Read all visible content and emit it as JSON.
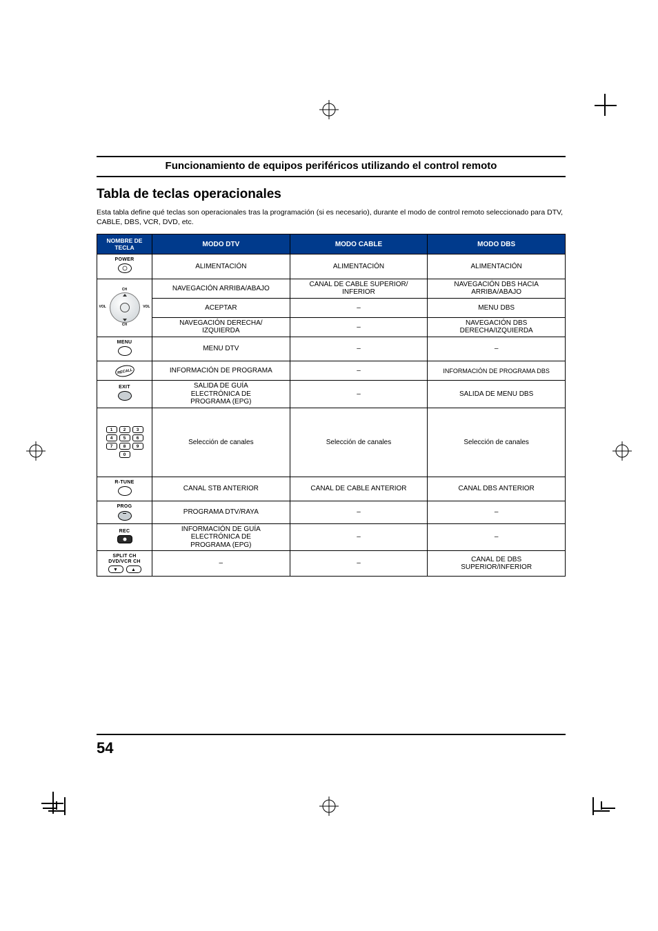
{
  "doc_title": "Funcionamiento de equipos periféricos utilizando el control remoto",
  "section_title": "Tabla de teclas operacionales",
  "intro": "Esta tabla define qué teclas son operacionales tras la programación (si es necesario), durante el modo de control remoto seleccionado para DTV, CABLE, DBS, VCR, DVD, etc.",
  "page_number": "54",
  "header": {
    "c0": "NOMBRE DE TECLA",
    "c1": "MODO DTV",
    "c2": "MODO CABLE",
    "c3": "MODO DBS"
  },
  "rows": {
    "power": {
      "key": "POWER",
      "dtv": "ALIMENTACIÓN",
      "cable": "ALIMENTACIÓN",
      "dbs": "ALIMENTACIÓN"
    },
    "nav_ud": {
      "dtv": "NAVEGACIÓN ARRIBA/ABAJO",
      "cable": "CANAL DE CABLE SUPERIOR/\nINFERIOR",
      "dbs": "NAVEGACIÓN DBS HACIA\nARRIBA/ABAJO"
    },
    "nav_ok": {
      "dtv": "ACEPTAR",
      "cable": "–",
      "dbs": "MENU DBS"
    },
    "nav_lr": {
      "dtv": "NAVEGACIÓN DERECHA/\nIZQUIERDA",
      "cable": "–",
      "dbs": "NAVEGACIÓN DBS\nDERECHA/IZQUIERDA"
    },
    "menu": {
      "key": "MENU",
      "dtv": "MENU DTV",
      "cable": "–",
      "dbs": "–"
    },
    "recall": {
      "dtv": "INFORMACIÓN DE PROGRAMA",
      "cable": "–",
      "dbs": "INFORMACIÓN DE PROGRAMA DBS"
    },
    "exit": {
      "key": "EXIT",
      "dtv": "SALIDA DE GUÍA\nELECTRÓNICA DE\nPROGRAMA (EPG)",
      "cable": "–",
      "dbs": "SALIDA DE MENU DBS"
    },
    "numpad": {
      "dtv": "Selección de canales",
      "cable": "Selección de canales",
      "dbs": "Selección de canales"
    },
    "rtune": {
      "key": "R-TUNE",
      "dtv": "CANAL STB ANTERIOR",
      "cable": "CANAL DE CABLE ANTERIOR",
      "dbs": "CANAL DBS ANTERIOR"
    },
    "prog": {
      "key": "PROG",
      "dtv": "PROGRAMA DTV/RAYA",
      "cable": "–",
      "dbs": "–"
    },
    "rec": {
      "key": "REC",
      "dtv": "INFORMACIÓN DE GUÍA\nELECTRÓNICA DE\nPROGRAMA (EPG)",
      "cable": "–",
      "dbs": "–"
    },
    "split": {
      "key1": "SPLIT CH",
      "key2": "DVD/VCR CH",
      "dtv": "–",
      "cable": "–",
      "dbs": "CANAL DE DBS\nSUPERIOR/INFERIOR"
    }
  },
  "dpad": {
    "top": "CH",
    "bottom": "CH",
    "left": "VOL",
    "right": "VOL"
  },
  "recall_label": "RECALL"
}
